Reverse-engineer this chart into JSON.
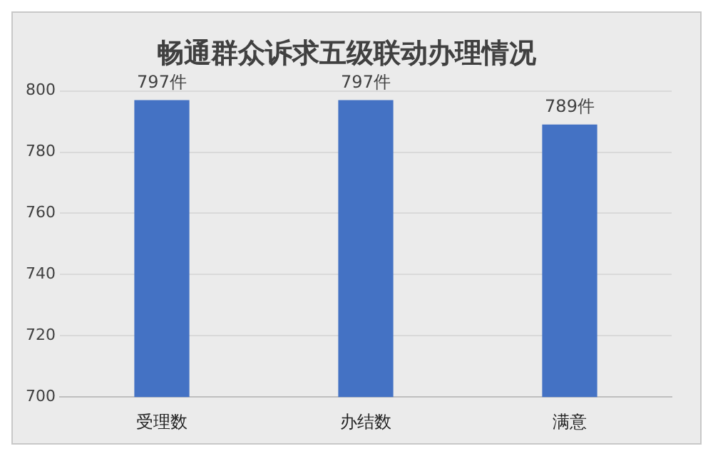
{
  "chart_data": {
    "type": "bar",
    "title": "畅通群众诉求五级联动办理情况",
    "categories": [
      "受理数",
      "办结数",
      "满意"
    ],
    "values": [
      797,
      797,
      789
    ],
    "value_labels": [
      "797件",
      "797件",
      "789件"
    ],
    "color": "#4472c4",
    "ylim": [
      700,
      800
    ],
    "yticks": [
      700,
      720,
      740,
      760,
      780,
      800
    ],
    "grid": "y",
    "legend": false
  }
}
